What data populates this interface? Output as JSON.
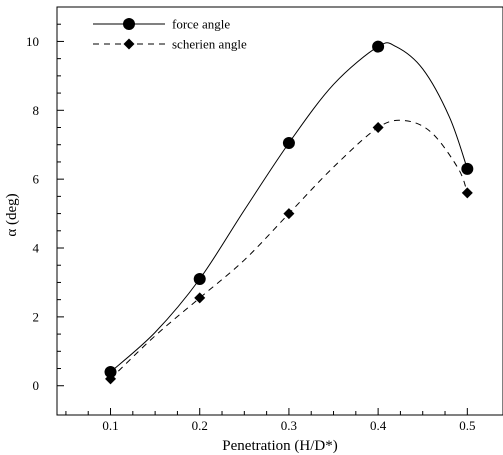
{
  "chart_data": {
    "type": "line",
    "xlabel": "Penetration (H/D*)",
    "ylabel": "α (deg)",
    "xlim": [
      0.04,
      0.54
    ],
    "ylim": [
      -0.85,
      11.0
    ],
    "xticks": [
      "0.1",
      "0.2",
      "0.3",
      "0.4",
      "0.5"
    ],
    "yticks": [
      "0",
      "2",
      "4",
      "6",
      "8",
      "10"
    ],
    "legend_position": "top-left",
    "series": [
      {
        "name": "force angle",
        "marker": "circle",
        "line": "solid",
        "x": [
          0.1,
          0.2,
          0.3,
          0.4,
          0.5
        ],
        "y": [
          0.4,
          3.1,
          7.05,
          9.85,
          6.3
        ],
        "curve": [
          [
            0.1,
            0.4
          ],
          [
            0.15,
            1.55
          ],
          [
            0.2,
            3.1
          ],
          [
            0.25,
            5.1
          ],
          [
            0.3,
            7.05
          ],
          [
            0.35,
            8.75
          ],
          [
            0.4,
            9.85
          ],
          [
            0.42,
            9.85
          ],
          [
            0.45,
            9.2
          ],
          [
            0.48,
            7.8
          ],
          [
            0.5,
            6.3
          ]
        ]
      },
      {
        "name": "scherien angle",
        "marker": "diamond",
        "line": "dashed",
        "x": [
          0.1,
          0.2,
          0.3,
          0.4,
          0.5
        ],
        "y": [
          0.2,
          2.55,
          5.0,
          7.5,
          5.6
        ],
        "curve": [
          [
            0.1,
            0.2
          ],
          [
            0.15,
            1.45
          ],
          [
            0.2,
            2.55
          ],
          [
            0.25,
            3.65
          ],
          [
            0.3,
            5.0
          ],
          [
            0.35,
            6.35
          ],
          [
            0.4,
            7.5
          ],
          [
            0.43,
            7.7
          ],
          [
            0.46,
            7.35
          ],
          [
            0.49,
            6.3
          ],
          [
            0.5,
            5.6
          ]
        ]
      }
    ],
    "colors": {
      "line": "#000000",
      "axis": "#000000"
    }
  }
}
